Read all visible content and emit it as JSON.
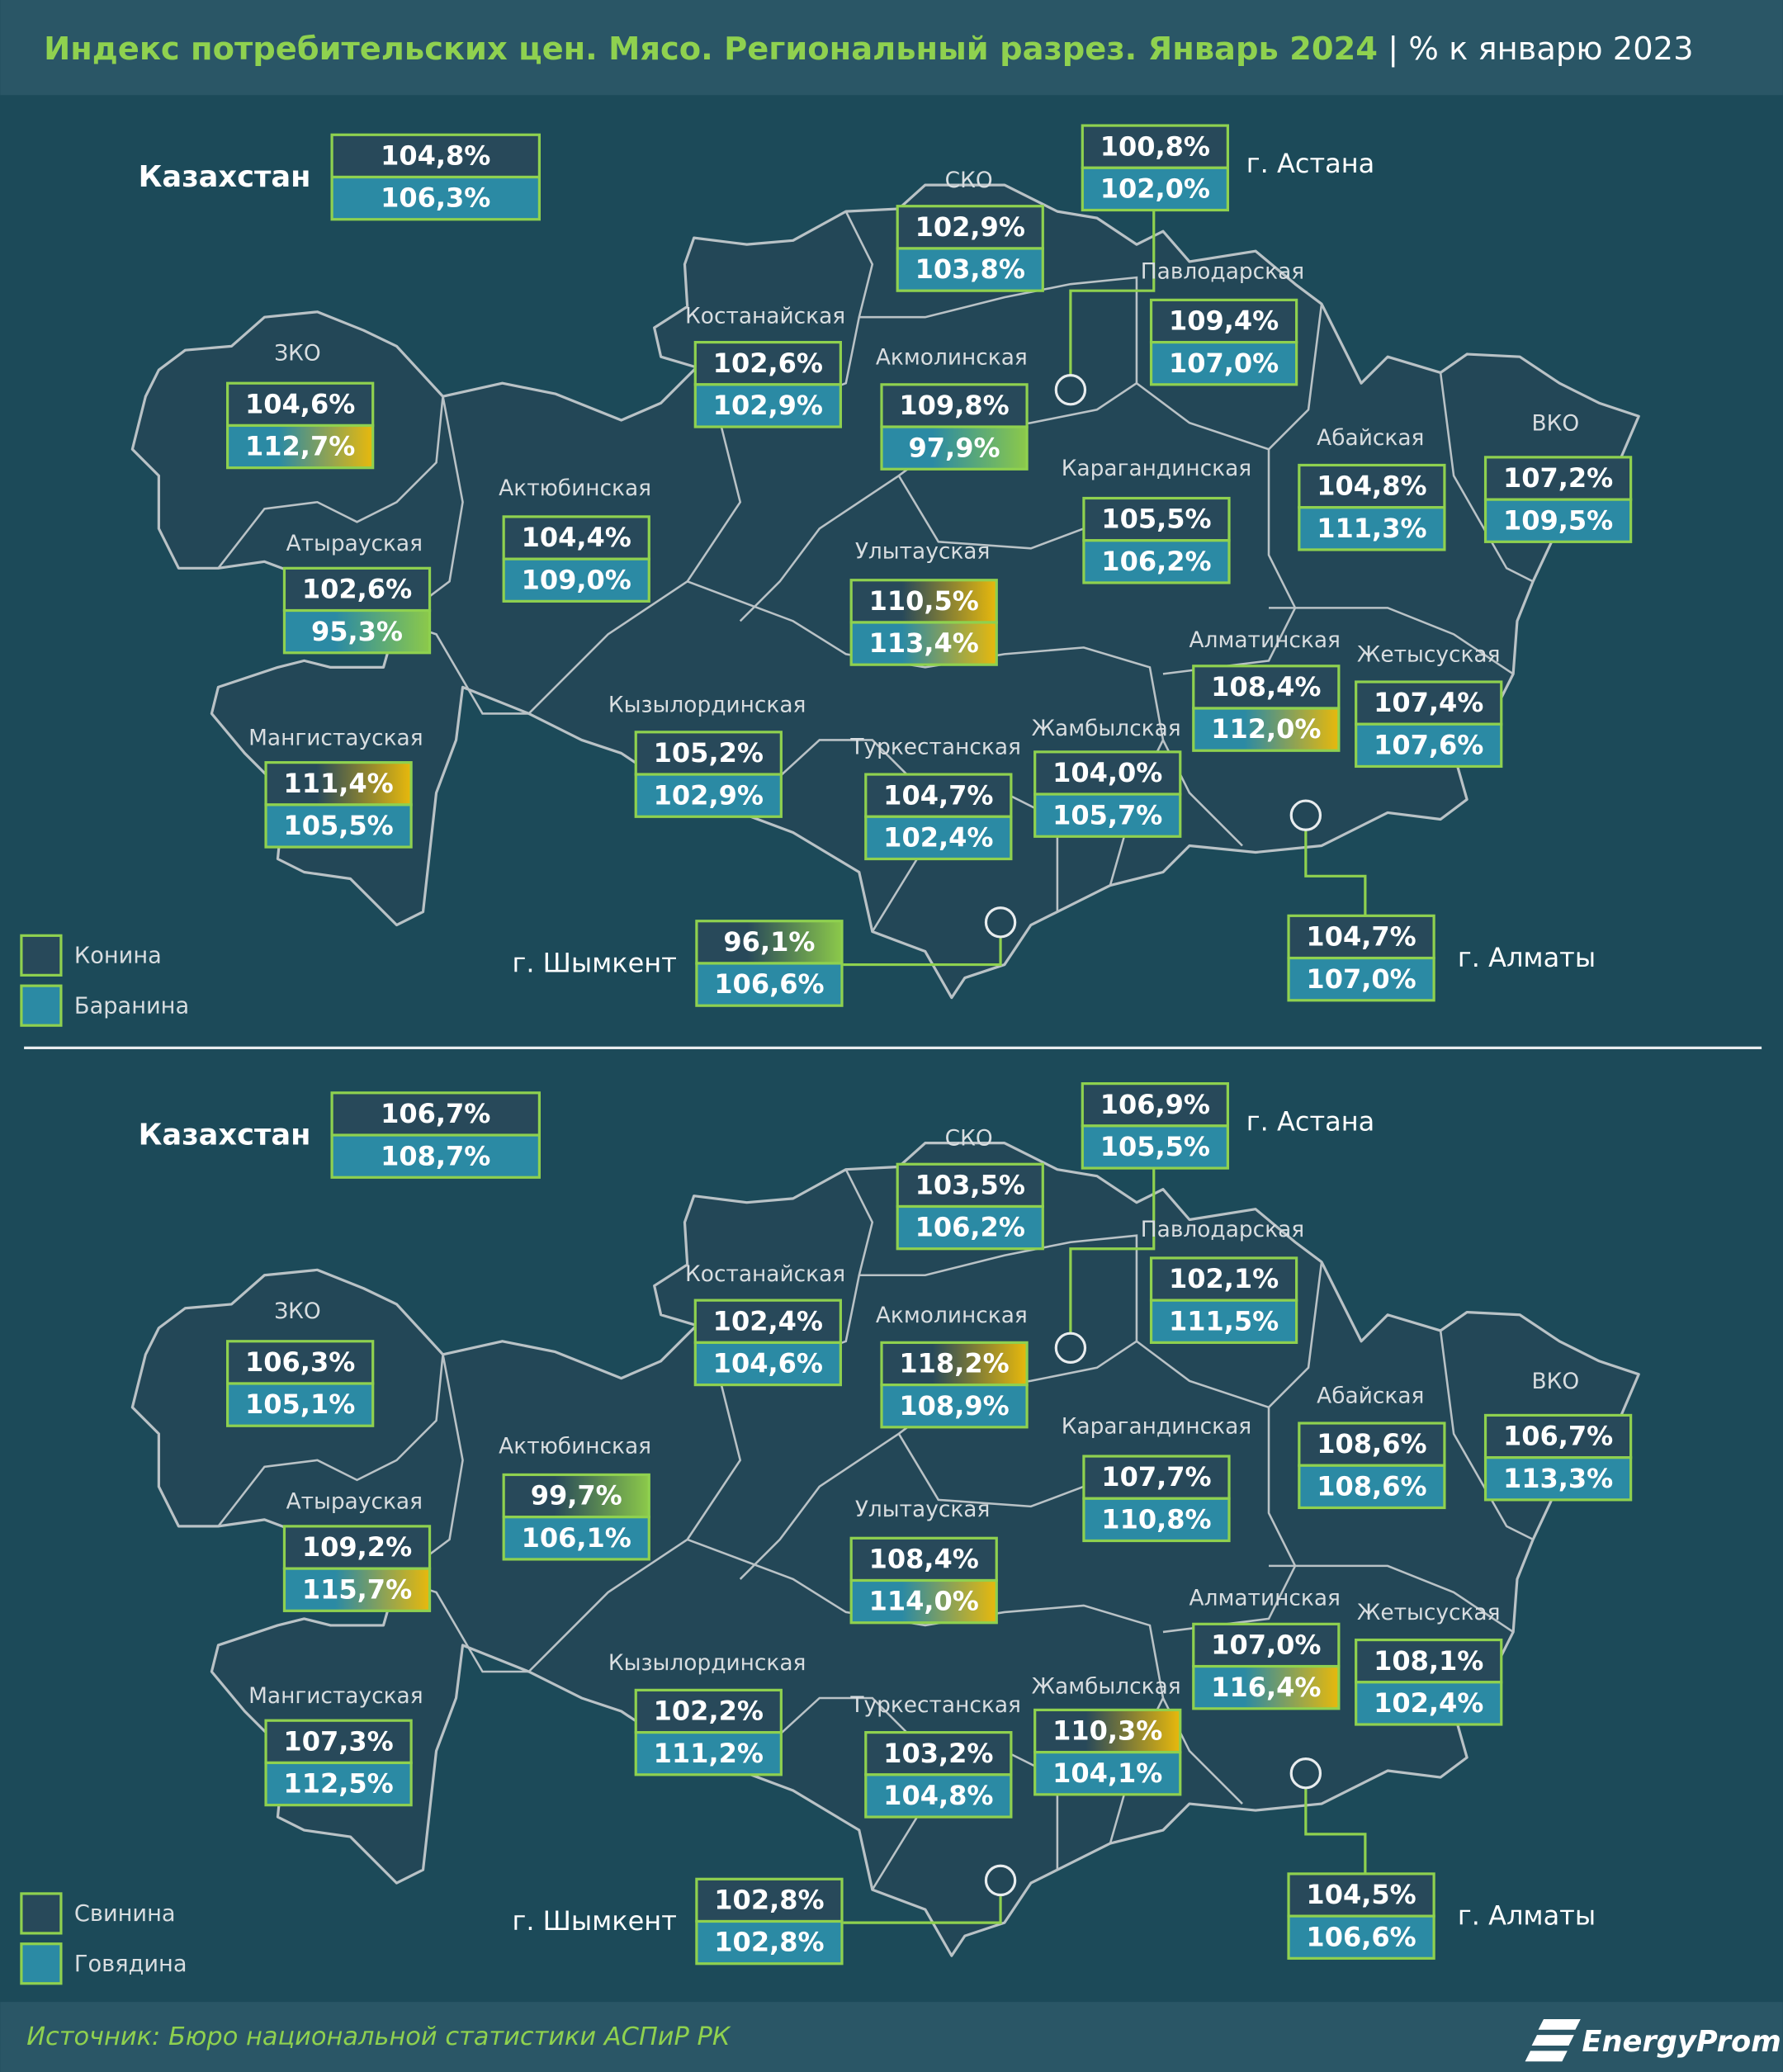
{
  "title": "Индекс потребительских цен. Мясо. Региональный разрез. Январь 2024",
  "subtitle": "% к январю 2023",
  "source": "Источник: Бюро национальной статистики АСПиР РК",
  "brand": "EnergyProm",
  "panels": [
    {
      "legend": [
        "Конина",
        "Баранина"
      ],
      "regions": [
        {
          "name": "Казахстан",
          "values": [
            "104,8%",
            "106,3%"
          ]
        },
        {
          "name": "г. Астана",
          "values": [
            "100,8%",
            "102,0%"
          ]
        },
        {
          "name": "СКО",
          "values": [
            "102,9%",
            "103,8%"
          ]
        },
        {
          "name": "Павлодарская",
          "values": [
            "109,4%",
            "107,0%"
          ]
        },
        {
          "name": "Костанайская",
          "values": [
            "102,6%",
            "102,9%"
          ]
        },
        {
          "name": "Акмолинская",
          "values": [
            "109,8%",
            "97,9%"
          ],
          "highlight_row": 1,
          "highlight_color": "#8cc94a"
        },
        {
          "name": "ЗКО",
          "values": [
            "104,6%",
            "112,7%"
          ],
          "highlight_row": 1,
          "highlight_color": "#e8b90c"
        },
        {
          "name": "Актюбинская",
          "values": [
            "104,4%",
            "109,0%"
          ]
        },
        {
          "name": "Абайская",
          "values": [
            "104,8%",
            "111,3%"
          ]
        },
        {
          "name": "ВКО",
          "values": [
            "107,2%",
            "109,5%"
          ]
        },
        {
          "name": "Карагандинская",
          "values": [
            "105,5%",
            "106,2%"
          ]
        },
        {
          "name": "Атырауская",
          "values": [
            "102,6%",
            "95,3%"
          ],
          "highlight_row": 1,
          "highlight_color": "#8cc94a"
        },
        {
          "name": "Улытауская",
          "values": [
            "110,5%",
            "113,4%"
          ],
          "highlight_row": "both",
          "highlight_color": "#e8b90c"
        },
        {
          "name": "Алматинская",
          "values": [
            "108,4%",
            "112,0%"
          ],
          "highlight_row": 1,
          "highlight_color": "#e8b90c"
        },
        {
          "name": "Жетысуская",
          "values": [
            "107,4%",
            "107,6%"
          ]
        },
        {
          "name": "Кызылординская",
          "values": [
            "105,2%",
            "102,9%"
          ]
        },
        {
          "name": "Мангистауская",
          "values": [
            "111,4%",
            "105,5%"
          ],
          "highlight_row": 0,
          "highlight_color": "#e8b90c"
        },
        {
          "name": "Туркестанская",
          "values": [
            "104,7%",
            "102,4%"
          ]
        },
        {
          "name": "Жамбылская",
          "values": [
            "104,0%",
            "105,7%"
          ]
        },
        {
          "name": "г. Шымкент",
          "values": [
            "96,1%",
            "106,6%"
          ],
          "highlight_row": 0,
          "highlight_color": "#8cc94a"
        },
        {
          "name": "г. Алматы",
          "values": [
            "104,7%",
            "107,0%"
          ]
        }
      ]
    },
    {
      "legend": [
        "Свинина",
        "Говядина"
      ],
      "regions": [
        {
          "name": "Казахстан",
          "values": [
            "106,7%",
            "108,7%"
          ]
        },
        {
          "name": "г. Астана",
          "values": [
            "106,9%",
            "105,5%"
          ]
        },
        {
          "name": "СКО",
          "values": [
            "103,5%",
            "106,2%"
          ]
        },
        {
          "name": "Павлодарская",
          "values": [
            "102,1%",
            "111,5%"
          ]
        },
        {
          "name": "Костанайская",
          "values": [
            "102,4%",
            "104,6%"
          ]
        },
        {
          "name": "Акмолинская",
          "values": [
            "118,2%",
            "108,9%"
          ],
          "highlight_row": 0,
          "highlight_color": "#e8b90c"
        },
        {
          "name": "ЗКО",
          "values": [
            "106,3%",
            "105,1%"
          ]
        },
        {
          "name": "Актюбинская",
          "values": [
            "99,7%",
            "106,1%"
          ],
          "highlight_row": 0,
          "highlight_color": "#8cc94a"
        },
        {
          "name": "Абайская",
          "values": [
            "108,6%",
            "108,6%"
          ]
        },
        {
          "name": "ВКО",
          "values": [
            "106,7%",
            "113,3%"
          ]
        },
        {
          "name": "Карагандинская",
          "values": [
            "107,7%",
            "110,8%"
          ]
        },
        {
          "name": "Атырауская",
          "values": [
            "109,2%",
            "115,7%"
          ],
          "highlight_row": 1,
          "highlight_color": "#e8b90c"
        },
        {
          "name": "Улытауская",
          "values": [
            "108,4%",
            "114,0%"
          ],
          "highlight_row": 1,
          "highlight_color": "#e8b90c"
        },
        {
          "name": "Алматинская",
          "values": [
            "107,0%",
            "116,4%"
          ],
          "highlight_row": 1,
          "highlight_color": "#e8b90c"
        },
        {
          "name": "Жетысуская",
          "values": [
            "108,1%",
            "102,4%"
          ]
        },
        {
          "name": "Кызылординская",
          "values": [
            "102,2%",
            "111,2%"
          ]
        },
        {
          "name": "Мангистауская",
          "values": [
            "107,3%",
            "112,5%"
          ]
        },
        {
          "name": "Туркестанская",
          "values": [
            "103,2%",
            "104,8%"
          ]
        },
        {
          "name": "Жамбылская",
          "values": [
            "110,3%",
            "104,1%"
          ],
          "highlight_row": 0,
          "highlight_color": "#e8b90c"
        },
        {
          "name": "г. Шымкент",
          "values": [
            "102,8%",
            "102,8%"
          ]
        },
        {
          "name": "г. Алматы",
          "values": [
            "104,5%",
            "106,6%"
          ]
        }
      ]
    }
  ]
}
